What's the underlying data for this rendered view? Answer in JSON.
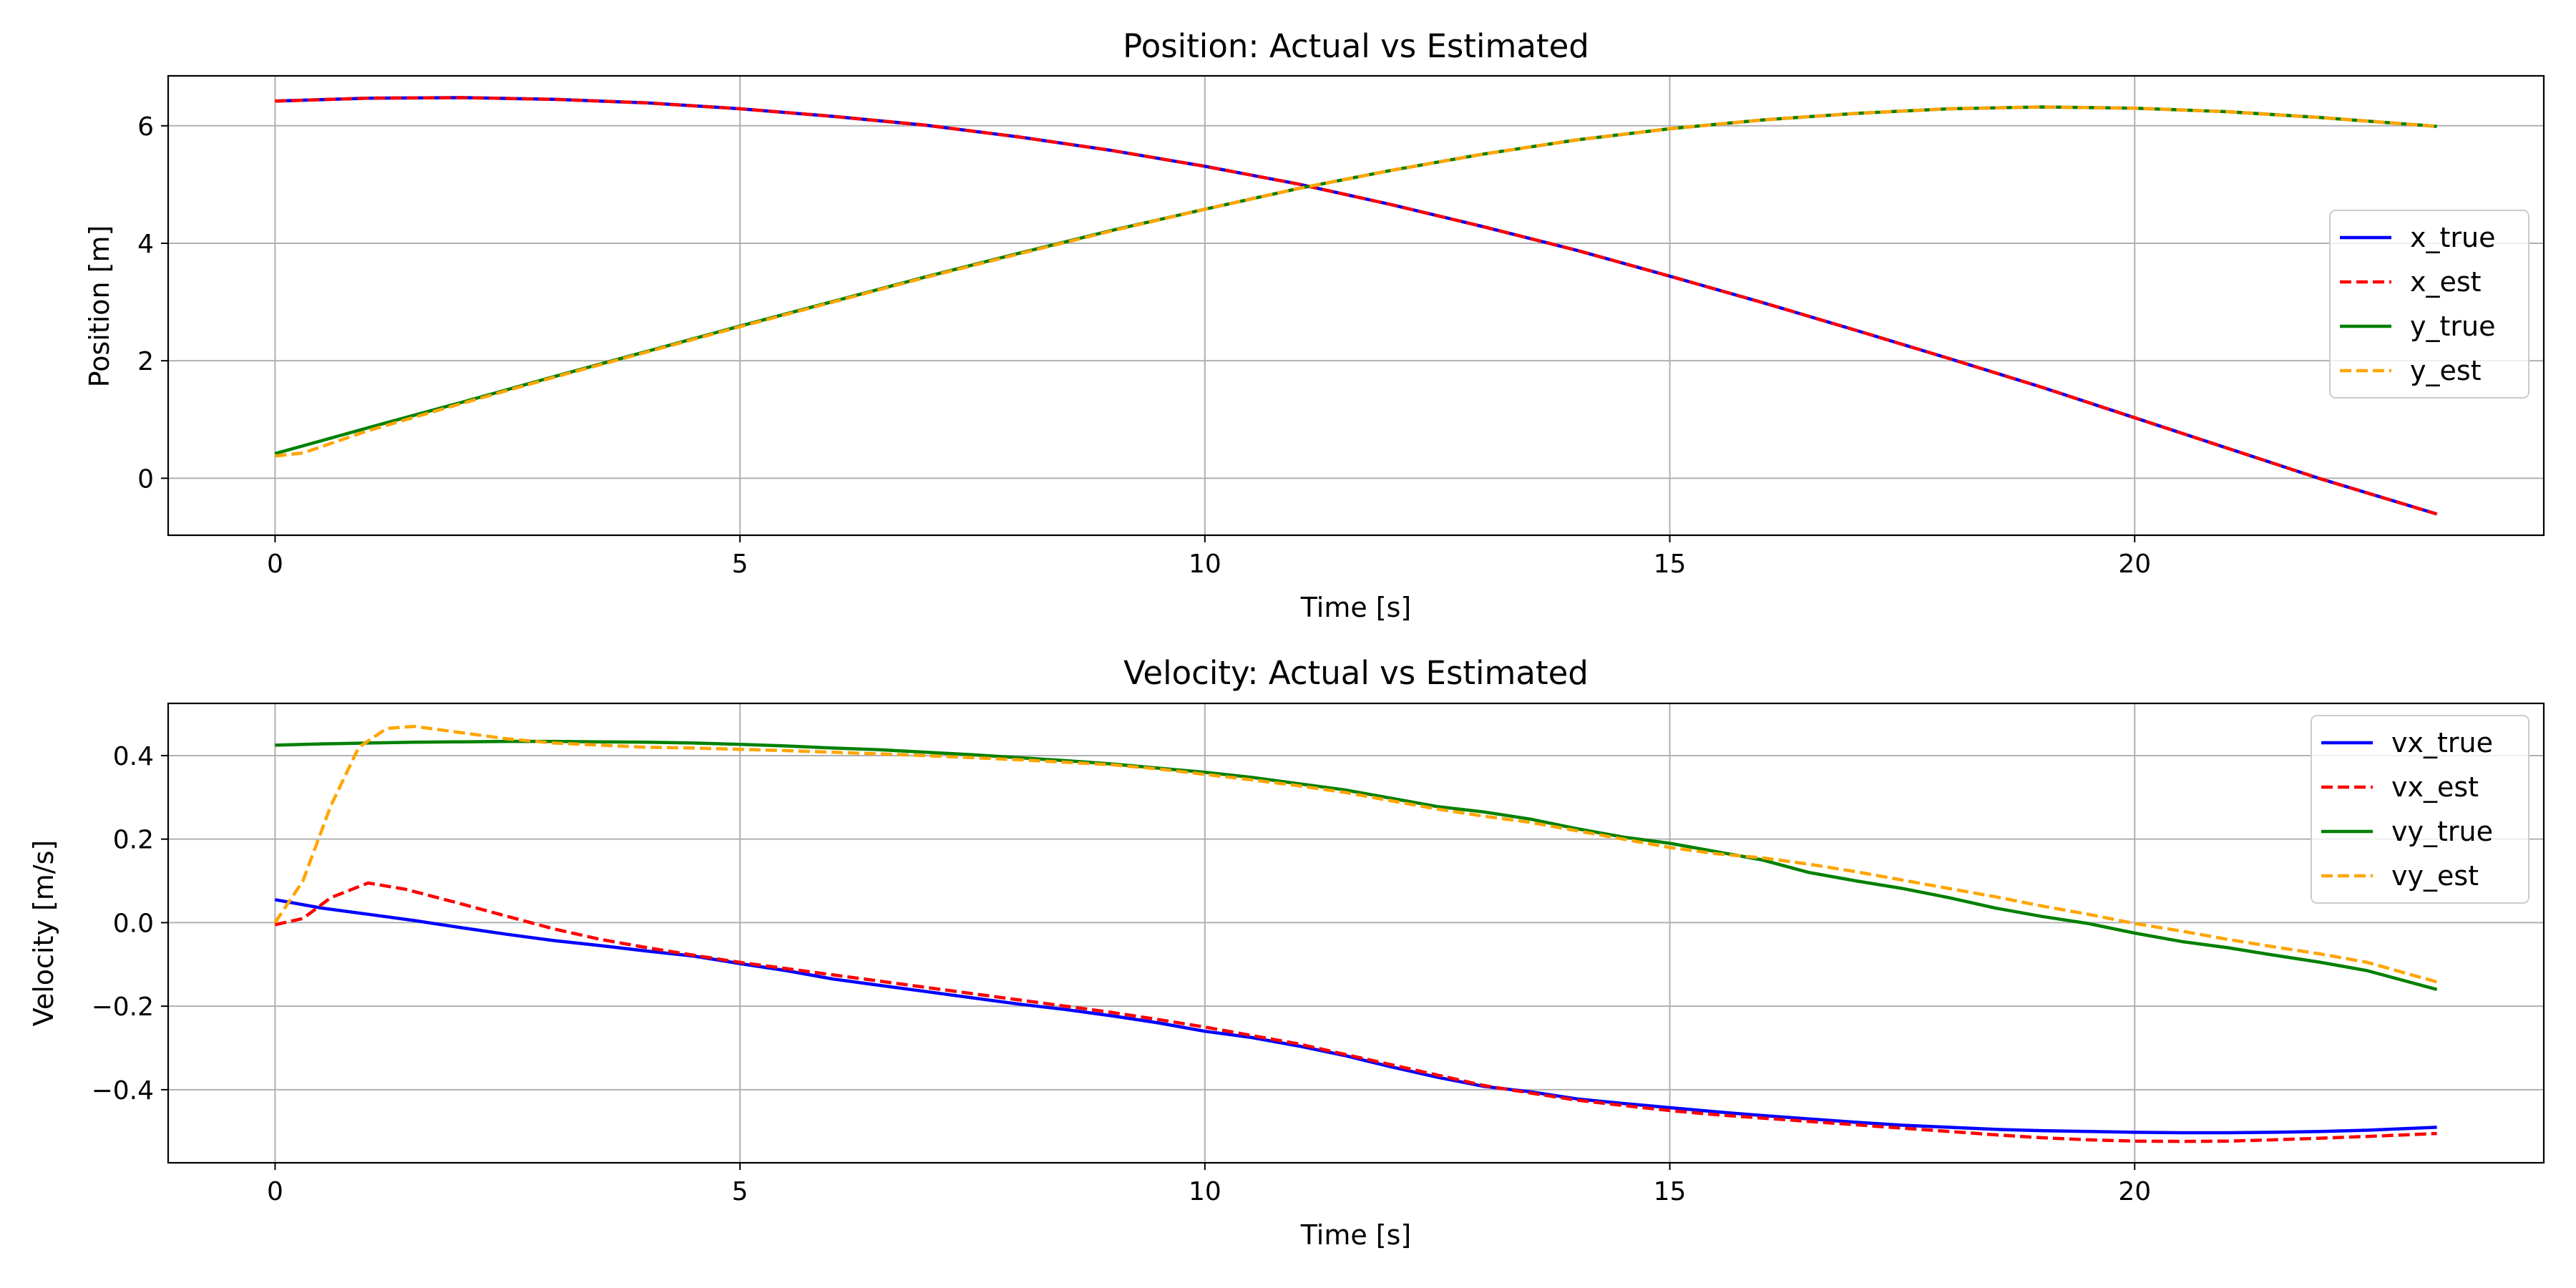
{
  "chart_data": [
    {
      "type": "line",
      "title": "Position: Actual vs Estimated",
      "xlabel": "Time [s]",
      "ylabel": "Position [m]",
      "xlim": [
        -1.15,
        24.4
      ],
      "ylim": [
        -0.97,
        6.85
      ],
      "xticks": [
        0,
        5,
        10,
        15,
        20
      ],
      "xtick_labels": [
        "0",
        "5",
        "10",
        "15",
        "20"
      ],
      "yticks": [
        0,
        2,
        4,
        6
      ],
      "ytick_labels": [
        "0",
        "2",
        "4",
        "6"
      ],
      "grid": true,
      "legend_position": "center-right",
      "series": [
        {
          "name": "x_true",
          "color": "#0000ff",
          "dashed": false,
          "x": [
            0,
            1,
            2,
            3,
            4,
            5,
            6,
            7,
            8,
            9,
            10,
            11,
            12,
            13,
            14,
            15,
            16,
            17,
            18,
            19,
            20,
            21,
            22,
            23.25
          ],
          "y": [
            6.42,
            6.47,
            6.48,
            6.45,
            6.39,
            6.29,
            6.16,
            6.01,
            5.81,
            5.58,
            5.31,
            5.01,
            4.66,
            4.28,
            3.88,
            3.44,
            2.99,
            2.52,
            2.04,
            1.55,
            1.03,
            0.51,
            -0.01,
            -0.61
          ]
        },
        {
          "name": "x_est",
          "color": "#ff0000",
          "dashed": true,
          "x": [
            0,
            1,
            2,
            3,
            4,
            5,
            6,
            7,
            8,
            9,
            10,
            11,
            12,
            13,
            14,
            15,
            16,
            17,
            18,
            19,
            20,
            21,
            22,
            23.25
          ],
          "y": [
            6.42,
            6.47,
            6.48,
            6.45,
            6.39,
            6.29,
            6.16,
            6.01,
            5.81,
            5.58,
            5.31,
            5.01,
            4.66,
            4.28,
            3.88,
            3.44,
            2.99,
            2.52,
            2.04,
            1.55,
            1.03,
            0.51,
            -0.01,
            -0.61
          ]
        },
        {
          "name": "y_true",
          "color": "#008000",
          "dashed": false,
          "x": [
            0,
            1,
            2,
            3,
            4,
            5,
            6,
            7,
            8,
            9,
            10,
            11,
            12,
            13,
            14,
            15,
            16,
            17,
            18,
            19,
            20,
            21,
            22,
            23.25
          ],
          "y": [
            0.42,
            0.86,
            1.29,
            1.73,
            2.16,
            2.59,
            3.01,
            3.43,
            3.83,
            4.22,
            4.58,
            4.93,
            5.24,
            5.52,
            5.76,
            5.95,
            6.1,
            6.21,
            6.29,
            6.32,
            6.3,
            6.24,
            6.14,
            5.99
          ]
        },
        {
          "name": "y_est",
          "color": "#ffa500",
          "dashed": true,
          "x": [
            0,
            0.3,
            1,
            2,
            3,
            4,
            5,
            6,
            7,
            8,
            9,
            10,
            11,
            12,
            13,
            14,
            15,
            16,
            17,
            18,
            19,
            20,
            21,
            22,
            23.25
          ],
          "y": [
            0.38,
            0.43,
            0.81,
            1.27,
            1.72,
            2.15,
            2.58,
            3.0,
            3.42,
            3.82,
            4.21,
            4.58,
            4.93,
            5.24,
            5.52,
            5.76,
            5.95,
            6.1,
            6.21,
            6.29,
            6.32,
            6.3,
            6.24,
            6.14,
            5.99
          ]
        }
      ]
    },
    {
      "type": "line",
      "title": "Velocity: Actual vs Estimated",
      "xlabel": "Time [s]",
      "ylabel": "Velocity [m/s]",
      "xlim": [
        -1.15,
        24.4
      ],
      "ylim": [
        -0.575,
        0.525
      ],
      "xticks": [
        0,
        5,
        10,
        15,
        20
      ],
      "xtick_labels": [
        "0",
        "5",
        "10",
        "15",
        "20"
      ],
      "yticks": [
        -0.4,
        -0.2,
        0.0,
        0.2,
        0.4
      ],
      "ytick_labels": [
        "−0.4",
        "−0.2",
        "0.0",
        "0.2",
        "0.4"
      ],
      "grid": true,
      "legend_position": "upper-right",
      "series": [
        {
          "name": "vx_true",
          "color": "#0000ff",
          "dashed": false,
          "x": [
            0,
            0.5,
            1,
            1.5,
            2,
            2.5,
            3,
            3.5,
            4,
            4.5,
            5,
            5.5,
            6,
            6.5,
            7,
            7.5,
            8,
            8.5,
            9,
            9.5,
            10,
            10.5,
            11,
            11.5,
            12,
            12.5,
            13,
            13.5,
            14,
            14.5,
            15,
            15.5,
            16,
            16.5,
            17,
            17.5,
            18,
            18.5,
            19,
            19.5,
            20,
            20.5,
            21,
            21.5,
            22,
            22.5,
            23.25
          ],
          "y": [
            0.055,
            0.035,
            0.02,
            0.005,
            -0.012,
            -0.028,
            -0.043,
            -0.055,
            -0.068,
            -0.08,
            -0.098,
            -0.115,
            -0.135,
            -0.15,
            -0.165,
            -0.18,
            -0.195,
            -0.208,
            -0.223,
            -0.24,
            -0.26,
            -0.275,
            -0.295,
            -0.318,
            -0.345,
            -0.37,
            -0.392,
            -0.405,
            -0.422,
            -0.433,
            -0.443,
            -0.453,
            -0.462,
            -0.47,
            -0.478,
            -0.485,
            -0.49,
            -0.495,
            -0.498,
            -0.5,
            -0.502,
            -0.503,
            -0.503,
            -0.502,
            -0.5,
            -0.497,
            -0.49
          ]
        },
        {
          "name": "vx_est",
          "color": "#ff0000",
          "dashed": true,
          "x": [
            0,
            0.3,
            0.6,
            1,
            1.4,
            2,
            2.5,
            3,
            3.5,
            4,
            4.5,
            5,
            5.5,
            6,
            6.5,
            7,
            7.5,
            8,
            8.5,
            9,
            9.5,
            10,
            10.5,
            11,
            11.5,
            12,
            12.5,
            13,
            13.5,
            14,
            14.5,
            15,
            15.5,
            16,
            16.5,
            17,
            17.5,
            18,
            18.5,
            19,
            19.5,
            20,
            20.5,
            21,
            21.5,
            22,
            22.5,
            23.25
          ],
          "y": [
            -0.005,
            0.01,
            0.06,
            0.095,
            0.08,
            0.045,
            0.015,
            -0.015,
            -0.04,
            -0.06,
            -0.078,
            -0.095,
            -0.11,
            -0.125,
            -0.14,
            -0.155,
            -0.17,
            -0.185,
            -0.2,
            -0.215,
            -0.232,
            -0.25,
            -0.27,
            -0.29,
            -0.315,
            -0.34,
            -0.365,
            -0.39,
            -0.408,
            -0.425,
            -0.438,
            -0.45,
            -0.46,
            -0.468,
            -0.476,
            -0.484,
            -0.492,
            -0.5,
            -0.508,
            -0.515,
            -0.52,
            -0.523,
            -0.524,
            -0.523,
            -0.52,
            -0.516,
            -0.512,
            -0.505
          ]
        },
        {
          "name": "vy_true",
          "color": "#008000",
          "dashed": false,
          "x": [
            0,
            0.5,
            1,
            1.5,
            2,
            2.5,
            3,
            3.5,
            4,
            4.5,
            5,
            5.5,
            6,
            6.5,
            7,
            7.5,
            8,
            8.5,
            9,
            9.5,
            10,
            10.5,
            11,
            11.5,
            12,
            12.5,
            13,
            13.5,
            14,
            14.5,
            15,
            15.5,
            16,
            16.5,
            17,
            17.5,
            18,
            18.5,
            19,
            19.5,
            20,
            20.5,
            21,
            21.5,
            22,
            22.5,
            23.25
          ],
          "y": [
            0.425,
            0.428,
            0.43,
            0.432,
            0.433,
            0.434,
            0.434,
            0.433,
            0.432,
            0.43,
            0.427,
            0.423,
            0.418,
            0.414,
            0.408,
            0.402,
            0.395,
            0.388,
            0.38,
            0.37,
            0.36,
            0.348,
            0.333,
            0.318,
            0.298,
            0.278,
            0.265,
            0.248,
            0.225,
            0.205,
            0.19,
            0.17,
            0.15,
            0.12,
            0.1,
            0.082,
            0.06,
            0.035,
            0.015,
            -0.002,
            -0.025,
            -0.045,
            -0.06,
            -0.078,
            -0.095,
            -0.115,
            -0.16
          ]
        },
        {
          "name": "vy_est",
          "color": "#ffa500",
          "dashed": true,
          "x": [
            0,
            0.3,
            0.6,
            0.9,
            1.2,
            1.5,
            2,
            2.5,
            3,
            3.5,
            4,
            4.5,
            5,
            5.5,
            6,
            6.5,
            7,
            7.5,
            8,
            8.5,
            9,
            9.5,
            10,
            10.5,
            11,
            11.5,
            12,
            12.5,
            13,
            13.5,
            14,
            14.5,
            15,
            15.5,
            16,
            16.5,
            17,
            17.5,
            18,
            18.5,
            19,
            19.5,
            20,
            20.5,
            21,
            21.5,
            22,
            22.5,
            23.25
          ],
          "y": [
            0.0,
            0.1,
            0.28,
            0.42,
            0.465,
            0.47,
            0.455,
            0.44,
            0.43,
            0.425,
            0.42,
            0.418,
            0.415,
            0.412,
            0.408,
            0.404,
            0.4,
            0.395,
            0.39,
            0.384,
            0.378,
            0.368,
            0.355,
            0.342,
            0.328,
            0.312,
            0.292,
            0.272,
            0.255,
            0.24,
            0.22,
            0.2,
            0.18,
            0.165,
            0.155,
            0.14,
            0.122,
            0.102,
            0.082,
            0.062,
            0.04,
            0.02,
            -0.002,
            -0.02,
            -0.04,
            -0.058,
            -0.075,
            -0.095,
            -0.142
          ]
        }
      ]
    }
  ]
}
